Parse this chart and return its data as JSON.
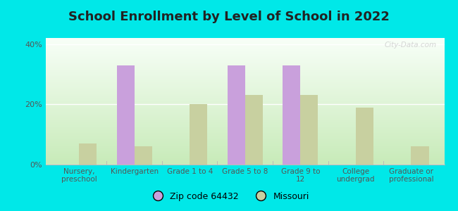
{
  "title": "School Enrollment by Level of School in 2022",
  "categories": [
    "Nursery,\npreschool",
    "Kindergarten",
    "Grade 1 to 4",
    "Grade 5 to 8",
    "Grade 9 to\n12",
    "College\nundergrad",
    "Graduate or\nprofessional"
  ],
  "zip_values": [
    0,
    33,
    0,
    33,
    33,
    0,
    0
  ],
  "mo_values": [
    7,
    6,
    20,
    23,
    23,
    19,
    6
  ],
  "zip_color": "#c9a0dc",
  "mo_color": "#c8d0a0",
  "background_outer": "#00e8e8",
  "background_inner_top": "#f8fff8",
  "background_inner_bottom": "#d0ecc0",
  "ylim": [
    0,
    42
  ],
  "yticks": [
    0,
    20,
    40
  ],
  "ytick_labels": [
    "0%",
    "20%",
    "40%"
  ],
  "legend_zip": "Zip code 64432",
  "legend_mo": "Missouri",
  "bar_width": 0.32,
  "title_fontsize": 13,
  "tick_fontsize": 8,
  "watermark": "City-Data.com"
}
